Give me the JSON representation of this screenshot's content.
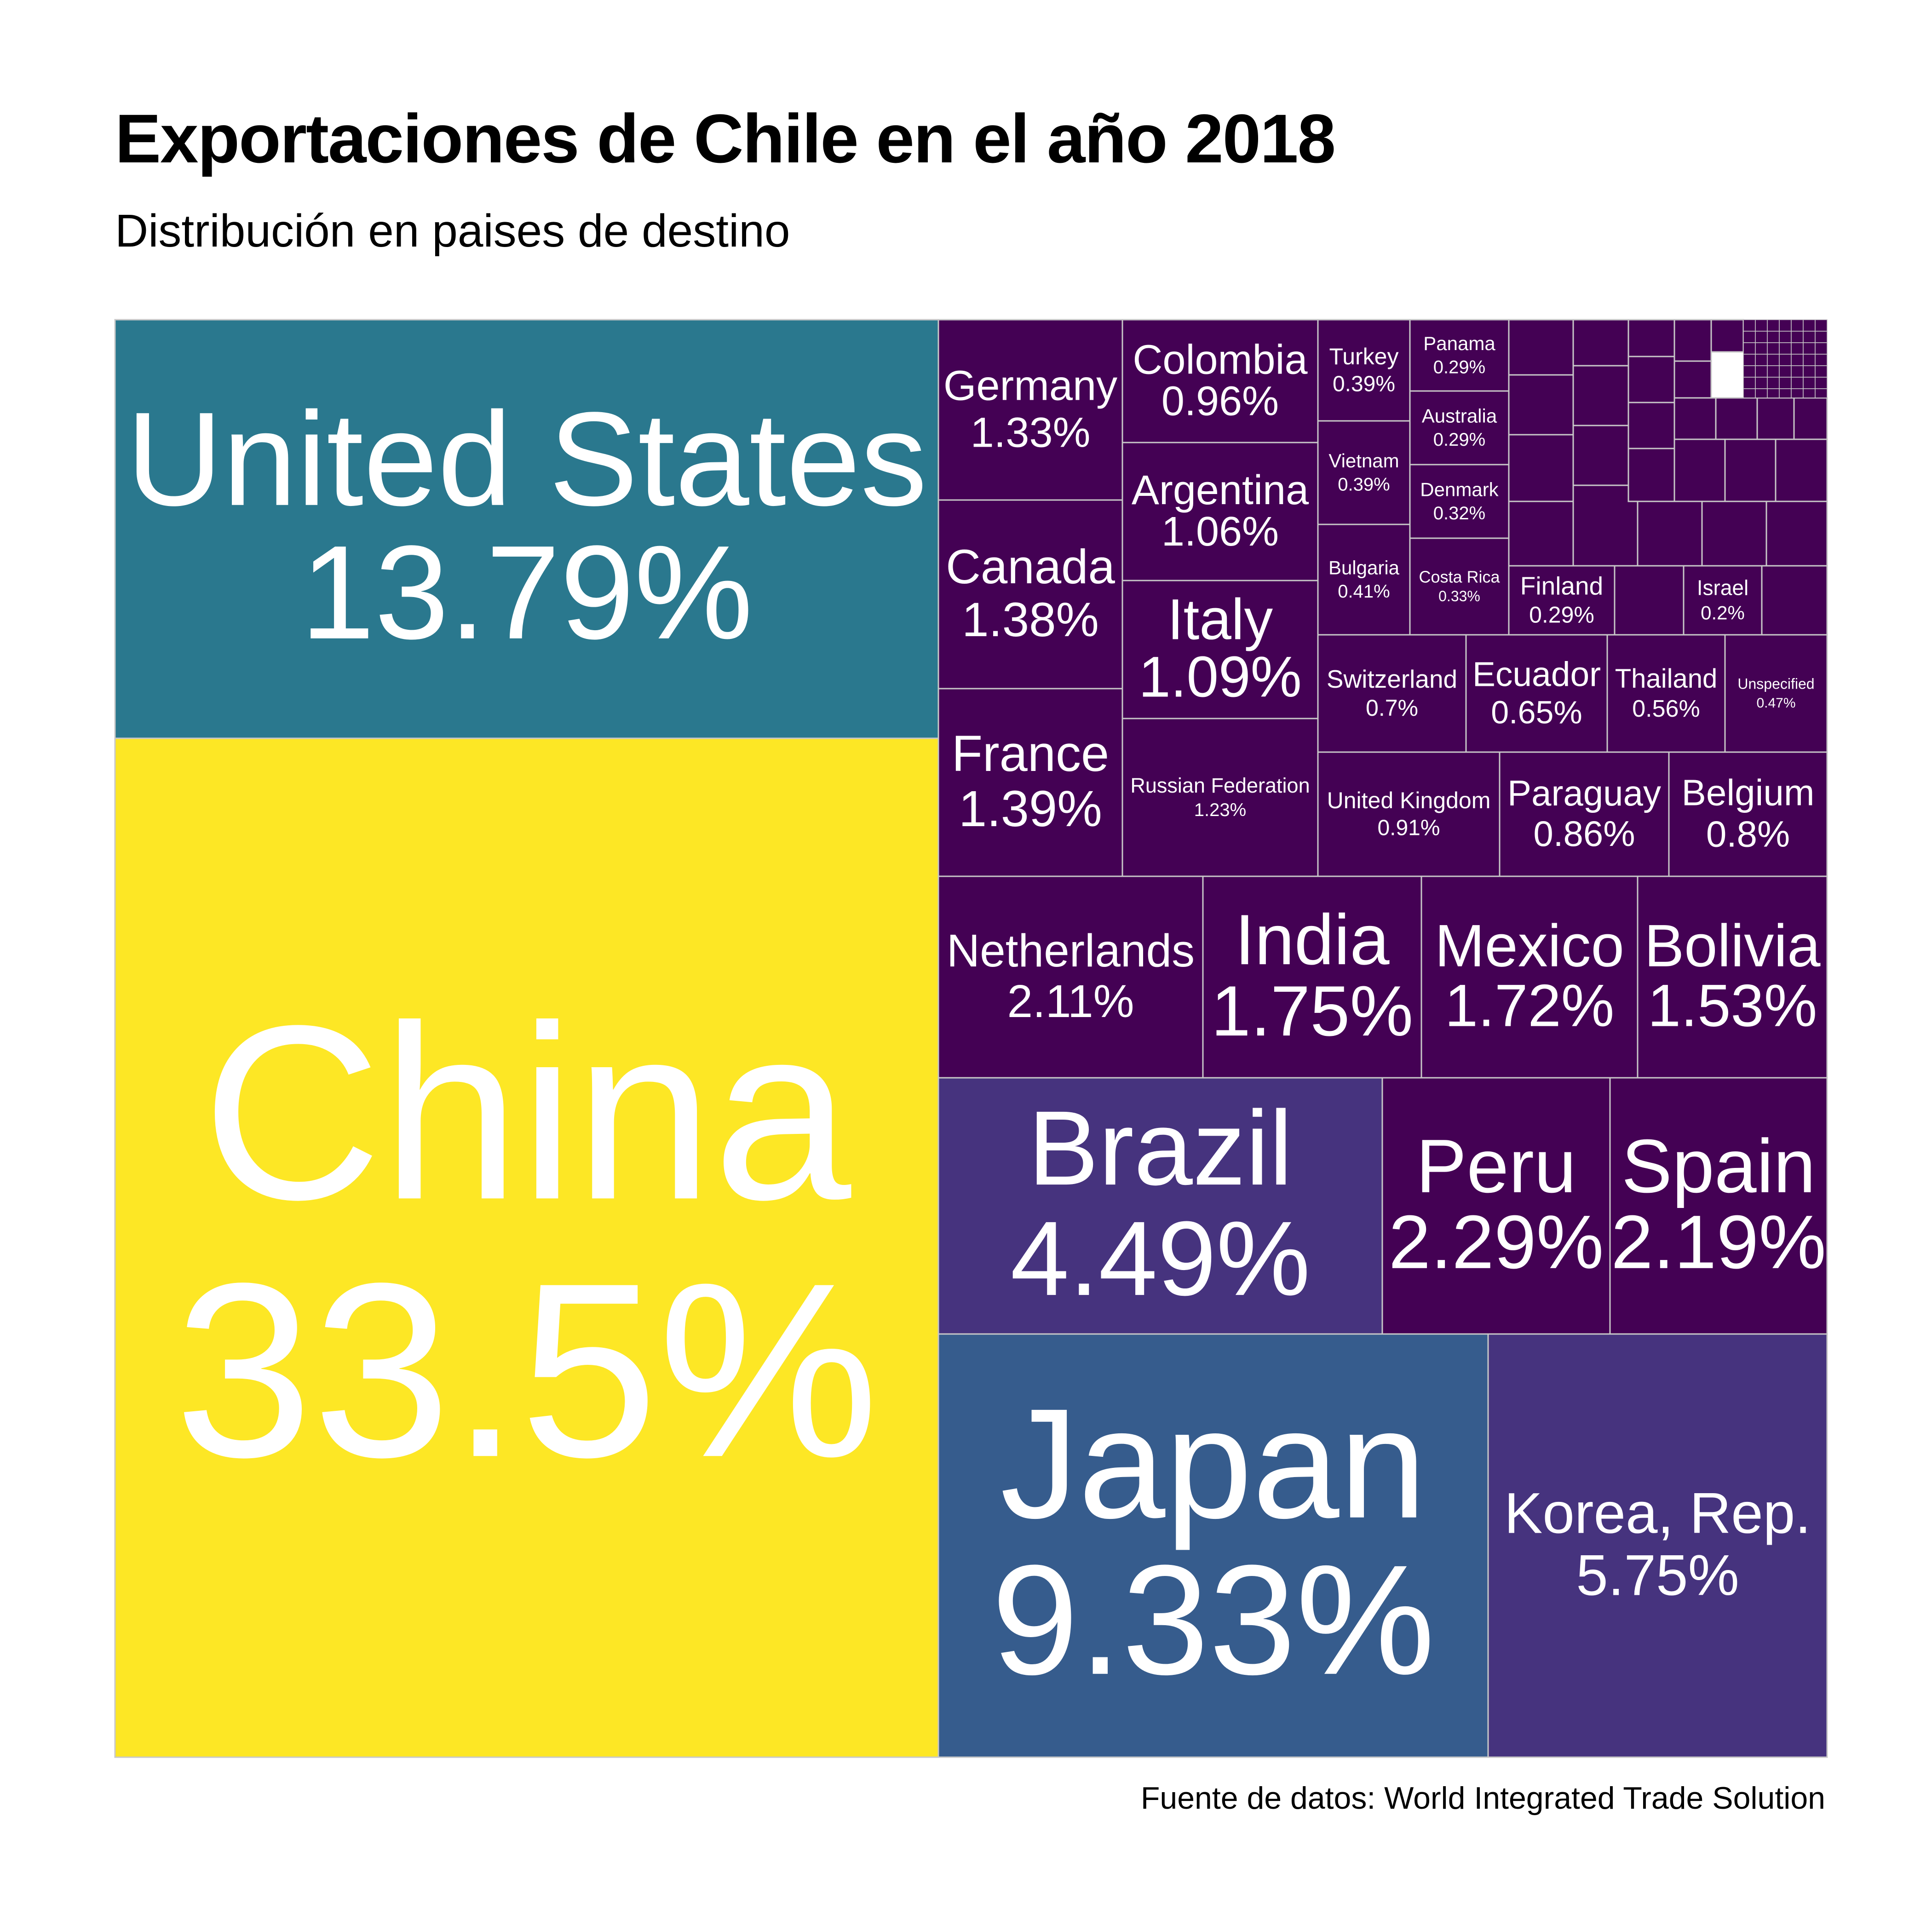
{
  "title": "Exportaciones de Chile en el año 2018",
  "subtitle": "Distribución en paises de destino",
  "caption": "Fuente de datos: World Integrated Trade Solution",
  "colors": {
    "china": "#FDE725",
    "united_states": "#2A788E",
    "japan": "#365C8D",
    "korea_brazil": "#46337E",
    "small": "#440154",
    "mid": "#3E1A5A",
    "border": "#c8c8c8"
  },
  "chart_data": {
    "type": "treemap",
    "unit": "%",
    "items": [
      {
        "name": "China",
        "value": 33.5
      },
      {
        "name": "United States",
        "value": 13.79
      },
      {
        "name": "Japan",
        "value": 9.33
      },
      {
        "name": "Korea, Rep.",
        "value": 5.75
      },
      {
        "name": "Brazil",
        "value": 4.49
      },
      {
        "name": "Peru",
        "value": 2.29
      },
      {
        "name": "Spain",
        "value": 2.19
      },
      {
        "name": "Netherlands",
        "value": 2.11
      },
      {
        "name": "India",
        "value": 1.75
      },
      {
        "name": "Mexico",
        "value": 1.72
      },
      {
        "name": "Bolivia",
        "value": 1.53
      },
      {
        "name": "France",
        "value": 1.39
      },
      {
        "name": "Canada",
        "value": 1.38
      },
      {
        "name": "Germany",
        "value": 1.33
      },
      {
        "name": "Russian Federation",
        "value": 1.23
      },
      {
        "name": "Italy",
        "value": 1.09
      },
      {
        "name": "Argentina",
        "value": 1.06
      },
      {
        "name": "Colombia",
        "value": 0.96
      },
      {
        "name": "United Kingdom",
        "value": 0.91
      },
      {
        "name": "Paraguay",
        "value": 0.86
      },
      {
        "name": "Belgium",
        "value": 0.8
      },
      {
        "name": "Switzerland",
        "value": 0.7
      },
      {
        "name": "Ecuador",
        "value": 0.65
      },
      {
        "name": "Thailand",
        "value": 0.56
      },
      {
        "name": "Unspecified",
        "value": 0.47
      },
      {
        "name": "Bulgaria",
        "value": 0.41
      },
      {
        "name": "Turkey",
        "value": 0.39
      },
      {
        "name": "Vietnam",
        "value": 0.39
      },
      {
        "name": "Costa Rica",
        "value": 0.33
      },
      {
        "name": "Denmark",
        "value": 0.32
      },
      {
        "name": "Panama",
        "value": 0.29
      },
      {
        "name": "Australia",
        "value": 0.29
      },
      {
        "name": "Finland",
        "value": 0.29
      },
      {
        "name": "Israel",
        "value": 0.2
      }
    ]
  }
}
